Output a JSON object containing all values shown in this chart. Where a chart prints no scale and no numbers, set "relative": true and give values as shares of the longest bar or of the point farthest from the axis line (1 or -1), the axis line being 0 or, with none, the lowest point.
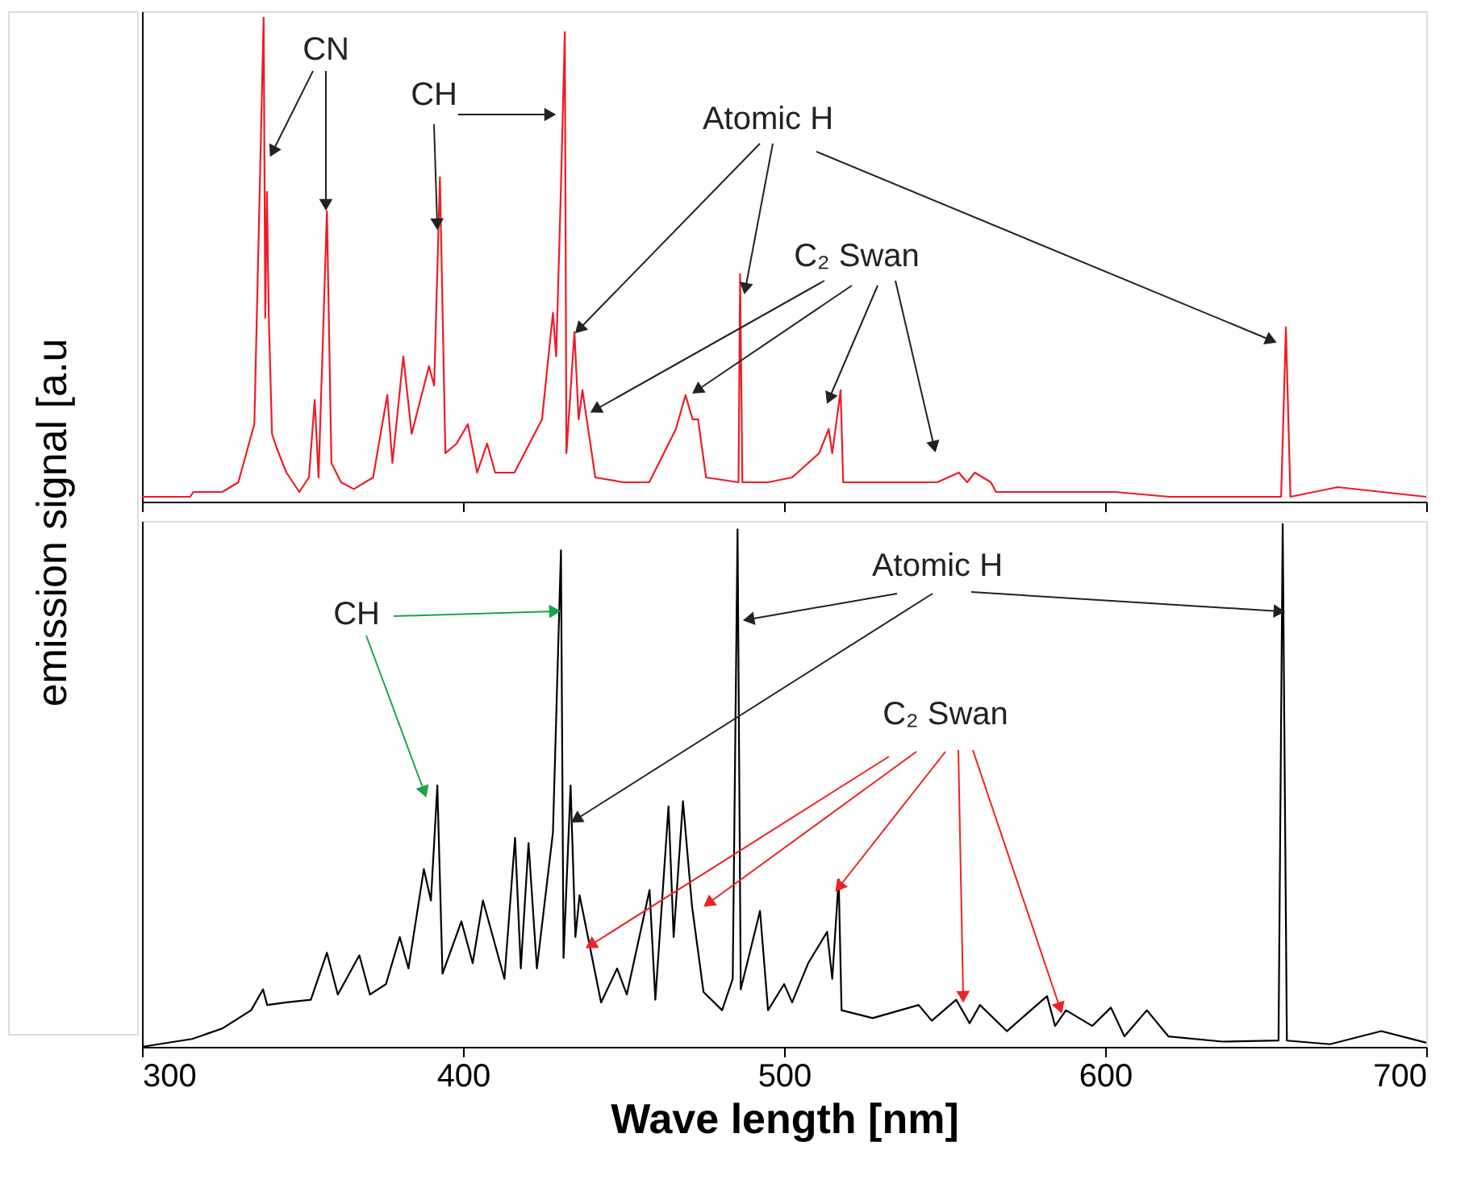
{
  "chart_data": [
    {
      "type": "line",
      "relative": true,
      "ylabel": "emission signal [a.u",
      "xlim": [
        300,
        700
      ],
      "xticks": [
        300,
        400,
        500,
        600,
        700
      ],
      "tick_labels": false,
      "x": [
        300,
        315,
        316,
        325,
        330,
        335,
        337.9,
        338.4,
        338.9,
        339.5,
        340.5,
        342,
        345,
        349,
        352,
        353.8,
        355,
        357.6,
        359,
        362,
        366,
        372,
        376.4,
        378,
        381.4,
        384,
        389.4,
        391,
        392.8,
        394.5,
        398,
        401.5,
        404.4,
        407.5,
        410,
        416,
        424.6,
        428,
        429,
        430.5,
        431.7,
        432.2,
        434.7,
        436,
        437.2,
        441.2,
        450,
        458,
        466.3,
        469.3,
        471.5,
        473.2,
        475.7,
        485.8,
        486.3,
        487,
        495,
        502.5,
        510.9,
        513.9,
        515,
        517.6,
        518.4,
        536,
        547.7,
        554.4,
        557,
        559.4,
        564.4,
        566,
        603,
        620,
        654.8,
        656.3,
        657.7,
        672.4,
        700
      ],
      "series": [
        {
          "color": "#ee1c25",
          "values": [
            0.01,
            0.01,
            0.02,
            0.02,
            0.04,
            0.16,
            1.0,
            0.38,
            0.64,
            0.38,
            0.14,
            0.11,
            0.06,
            0.02,
            0.05,
            0.21,
            0.05,
            0.6,
            0.08,
            0.04,
            0.026,
            0.05,
            0.22,
            0.08,
            0.3,
            0.14,
            0.28,
            0.24,
            0.67,
            0.1,
            0.12,
            0.16,
            0.06,
            0.12,
            0.06,
            0.06,
            0.17,
            0.39,
            0.3,
            0.65,
            0.97,
            0.1,
            0.35,
            0.17,
            0.23,
            0.05,
            0.04,
            0.04,
            0.15,
            0.22,
            0.17,
            0.17,
            0.05,
            0.04,
            0.47,
            0.04,
            0.04,
            0.05,
            0.1,
            0.15,
            0.1,
            0.23,
            0.04,
            0.04,
            0.04,
            0.06,
            0.04,
            0.06,
            0.04,
            0.02,
            0.02,
            0.01,
            0.01,
            0.36,
            0.01,
            0.03,
            0.01
          ]
        }
      ],
      "annotations": [
        "CN",
        "CH",
        "Atomic H",
        "C₂ Swan"
      ]
    },
    {
      "type": "line",
      "relative": true,
      "xlabel": "Wave length [nm]",
      "xlim": [
        300,
        700
      ],
      "xticks": [
        300,
        400,
        500,
        600,
        700
      ],
      "tick_labels": "x",
      "x": [
        300,
        315.6,
        325,
        334,
        337.7,
        339,
        345,
        352.6,
        357.6,
        361,
        367.7,
        371,
        376,
        380.3,
        383,
        387.8,
        390,
        392,
        393.6,
        399.5,
        403,
        406.2,
        412.9,
        416.2,
        418,
        420.4,
        423,
        428,
        430.5,
        431.3,
        433.5,
        435,
        436.3,
        443,
        448,
        451,
        458.1,
        459.9,
        464,
        465.6,
        468.5,
        471.3,
        474.9,
        480.7,
        484,
        485.5,
        486.5,
        492.5,
        495,
        500,
        502.5,
        507.5,
        513.4,
        515,
        517,
        517.9,
        527.6,
        541.9,
        546,
        553.6,
        557.8,
        561,
        569.4,
        581.9,
        584.4,
        587.8,
        596,
        601.8,
        606,
        613,
        619.7,
        636.5,
        654,
        655.3,
        656.6,
        670,
        686,
        700
      ],
      "series": [
        {
          "color": "#000000",
          "values": [
            0.0,
            0.015,
            0.035,
            0.07,
            0.11,
            0.08,
            0.085,
            0.09,
            0.18,
            0.1,
            0.175,
            0.1,
            0.12,
            0.21,
            0.15,
            0.34,
            0.28,
            0.5,
            0.14,
            0.24,
            0.16,
            0.28,
            0.13,
            0.4,
            0.15,
            0.39,
            0.15,
            0.41,
            0.95,
            0.17,
            0.5,
            0.21,
            0.29,
            0.085,
            0.15,
            0.1,
            0.3,
            0.09,
            0.46,
            0.21,
            0.47,
            0.27,
            0.105,
            0.07,
            0.13,
            0.99,
            0.11,
            0.26,
            0.07,
            0.12,
            0.085,
            0.16,
            0.22,
            0.13,
            0.32,
            0.07,
            0.055,
            0.08,
            0.05,
            0.09,
            0.045,
            0.08,
            0.03,
            0.097,
            0.04,
            0.07,
            0.04,
            0.075,
            0.02,
            0.07,
            0.02,
            0.01,
            0.012,
            1.0,
            0.012,
            0.005,
            0.03,
            0.008
          ]
        }
      ],
      "annotations": [
        "CH",
        "Atomic H",
        "C₂ Swan"
      ]
    }
  ]
}
